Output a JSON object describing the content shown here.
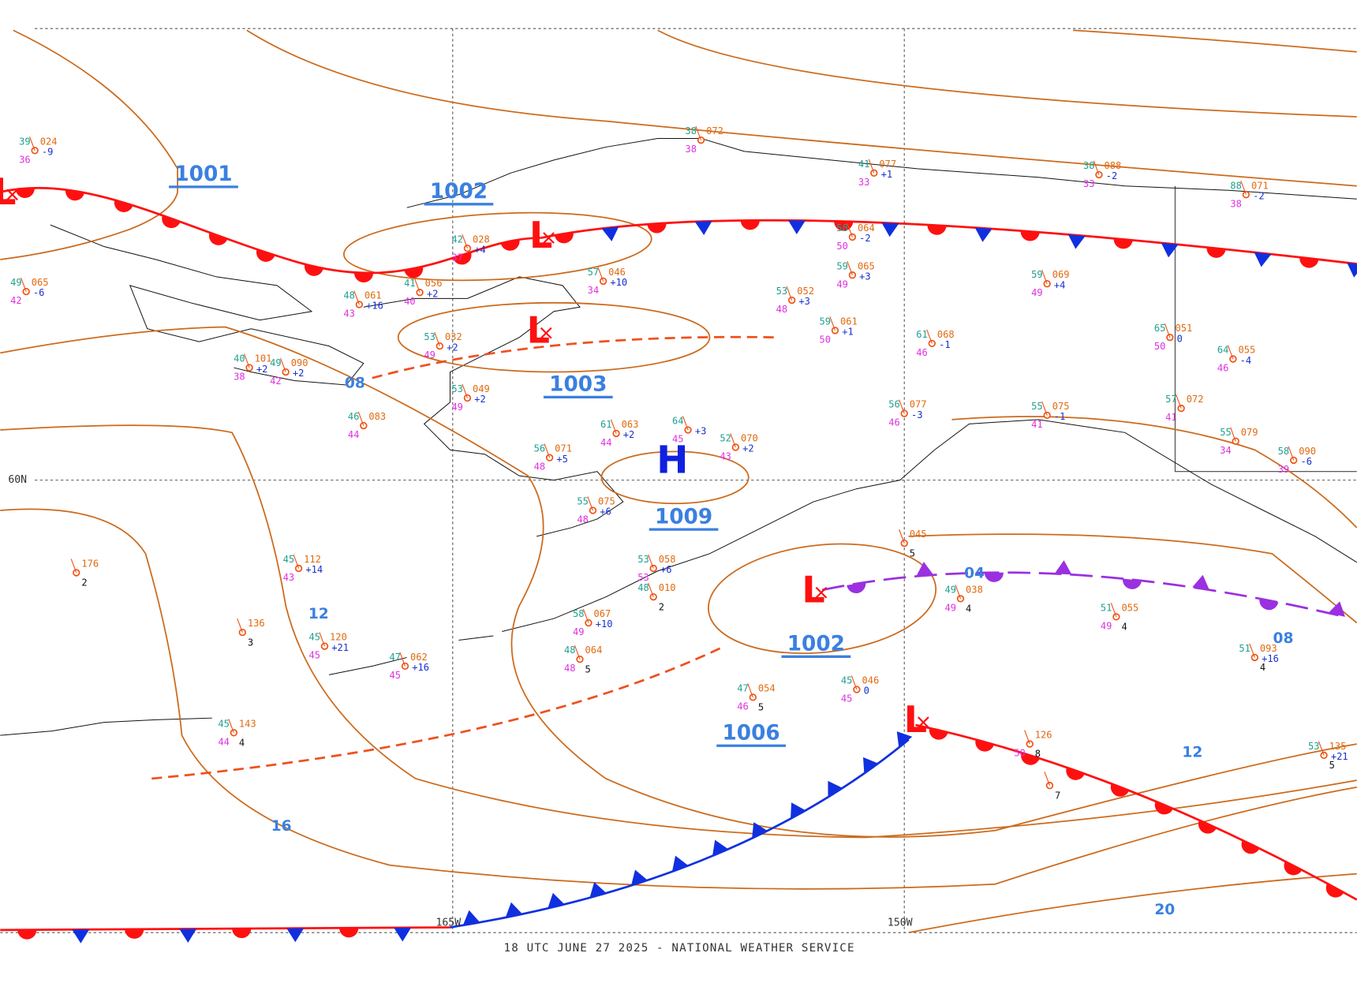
{
  "footer": "18 UTC JUNE 27 2025 - NATIONAL WEATHER SERVICE",
  "grid_labels": [
    "60N",
    "165W",
    "150W"
  ],
  "centers": [
    {
      "symbol": "L"
    },
    {
      "symbol": "L"
    },
    {
      "symbol": "L"
    },
    {
      "symbol": "L"
    },
    {
      "symbol": "L"
    },
    {
      "symbol": "H"
    }
  ],
  "pressure_labels": [
    "1001",
    "1002",
    "1003",
    "1009",
    "1002",
    "1006"
  ],
  "isobar_labels": [
    "08",
    "12",
    "16",
    "04",
    "08",
    "12",
    "20"
  ],
  "stations": [
    {
      "temp": "39",
      "pressure": "024",
      "dewpoint": "36",
      "tendency": "-9"
    },
    {
      "temp": "49",
      "pressure": "065",
      "dewpoint": "42",
      "tendency": "-6"
    },
    {
      "temp": "42",
      "pressure": "028",
      "dewpoint": "37",
      "tendency": "+4"
    },
    {
      "temp": "57",
      "pressure": "046",
      "dewpoint": "34",
      "tendency": "+10"
    },
    {
      "temp": "41",
      "pressure": "056",
      "dewpoint": "40",
      "tendency": "+2"
    },
    {
      "temp": "48",
      "pressure": "061",
      "dewpoint": "43",
      "tendency": "+16"
    },
    {
      "temp": "53",
      "pressure": "032",
      "dewpoint": "49",
      "tendency": "+2"
    },
    {
      "temp": "40",
      "pressure": "101",
      "dewpoint": "38",
      "tendency": "+2"
    },
    {
      "temp": "49",
      "pressure": "090",
      "dewpoint": "42",
      "tendency": "+2"
    },
    {
      "temp": "53",
      "pressure": "049",
      "dewpoint": "49",
      "tendency": "+2"
    },
    {
      "temp": "46",
      "pressure": "083",
      "dewpoint": "44"
    },
    {
      "temp": "56",
      "pressure": "071",
      "dewpoint": "48",
      "tendency": "+5"
    },
    {
      "temp": "61",
      "pressure": "063",
      "dewpoint": "44",
      "tendency": "+2"
    },
    {
      "temp": "64",
      "dewpoint": "45",
      "tendency": "+3"
    },
    {
      "temp": "52",
      "pressure": "070",
      "dewpoint": "43",
      "tendency": "+2"
    },
    {
      "temp": "55",
      "pressure": "075",
      "dewpoint": "48",
      "tendency": "+6"
    },
    {
      "temp": "53",
      "pressure": "058",
      "dewpoint": "53",
      "tendency": "+6"
    },
    {
      "temp": "48",
      "pressure": "010",
      "code": "2"
    },
    {
      "temp": "58",
      "pressure": "067",
      "dewpoint": "49",
      "tendency": "+10"
    },
    {
      "temp": "47",
      "pressure": "062",
      "dewpoint": "45",
      "tendency": "+16"
    },
    {
      "temp": "45",
      "pressure": "112",
      "dewpoint": "43",
      "tendency": "+14"
    },
    {
      "pressure": "176",
      "code": "2"
    },
    {
      "pressure": "136",
      "code": "3"
    },
    {
      "temp": "45",
      "pressure": "120",
      "dewpoint": "45",
      "tendency": "+21"
    },
    {
      "temp": "45",
      "pressure": "143",
      "dewpoint": "44",
      "code": "4"
    },
    {
      "temp": "38",
      "pressure": "072",
      "dewpoint": "38"
    },
    {
      "temp": "41",
      "pressure": "077",
      "dewpoint": "33",
      "tendency": "+1"
    },
    {
      "temp": "38",
      "pressure": "088",
      "dewpoint": "33",
      "tendency": "-2"
    },
    {
      "temp": "58",
      "pressure": "064",
      "dewpoint": "50",
      "tendency": "-2"
    },
    {
      "temp": "59",
      "pressure": "065",
      "dewpoint": "49",
      "tendency": "+3"
    },
    {
      "temp": "53",
      "pressure": "052",
      "dewpoint": "48",
      "tendency": "+3"
    },
    {
      "temp": "59",
      "pressure": "061",
      "dewpoint": "50",
      "tendency": "+1"
    },
    {
      "temp": "59",
      "pressure": "069",
      "dewpoint": "49",
      "tendency": "+4"
    },
    {
      "temp": "65",
      "pressure": "051",
      "dewpoint": "50",
      "tendency": "0"
    },
    {
      "temp": "64",
      "pressure": "055",
      "dewpoint": "46",
      "tendency": "-4"
    },
    {
      "temp": "61",
      "pressure": "068",
      "dewpoint": "46",
      "tendency": "-1"
    },
    {
      "temp": "56",
      "pressure": "077",
      "dewpoint": "46",
      "tendency": "-3"
    },
    {
      "temp": "55",
      "pressure": "075",
      "dewpoint": "41",
      "tendency": "-1"
    },
    {
      "temp": "57",
      "pressure": "072",
      "dewpoint": "41"
    },
    {
      "temp": "55",
      "pressure": "079",
      "dewpoint": "34"
    },
    {
      "temp": "58",
      "pressure": "090",
      "dewpoint": "39",
      "tendency": "-6"
    },
    {
      "temp": "51",
      "pressure": "055",
      "dewpoint": "49",
      "code": "4"
    },
    {
      "temp": "49",
      "pressure": "038",
      "dewpoint": "49",
      "code": "4"
    },
    {
      "temp": "47",
      "pressure": "054",
      "dewpoint": "46",
      "code": "5"
    },
    {
      "temp": "45",
      "pressure": "046",
      "dewpoint": "45",
      "tendency": "0"
    },
    {
      "temp": "48",
      "pressure": "064",
      "dewpoint": "48",
      "code": "5"
    },
    {
      "pressure": "126",
      "dewpoint": "50",
      "code": "8"
    },
    {
      "code": "7"
    },
    {
      "temp": "53",
      "pressure": "135",
      "tendency": "+21",
      "code": "5"
    },
    {
      "temp": "51",
      "pressure": "093",
      "tendency": "+16",
      "code": "4"
    },
    {
      "temp": "88",
      "pressure": "071",
      "dewpoint": "38",
      "tendency": "-2"
    },
    {
      "pressure": "045",
      "code": "5"
    }
  ]
}
